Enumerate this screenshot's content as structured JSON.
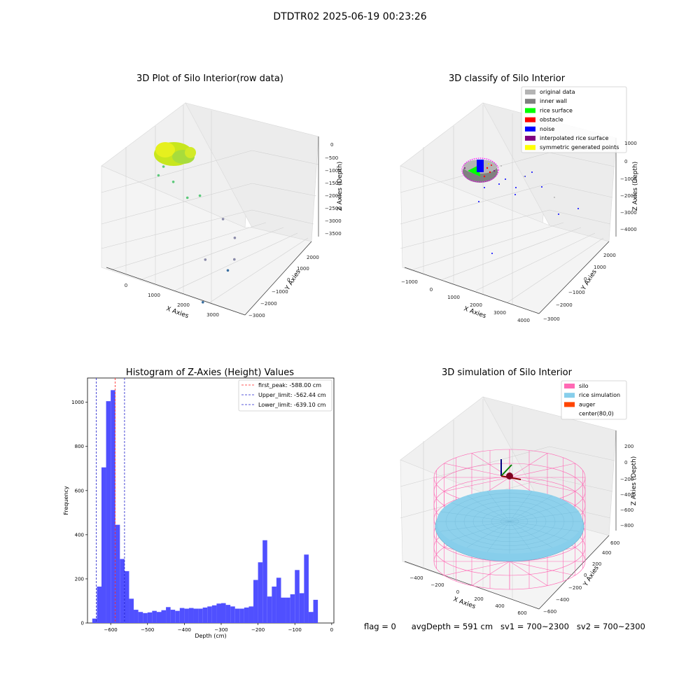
{
  "figure": {
    "suptitle": "DTDTR02 2025-06-19 00:23:26"
  },
  "status": {
    "flag": "flag = 0",
    "avg_depth": "avgDepth = 591 cm",
    "sv1": "sv1 = 700~2300",
    "sv2": "sv2 = 700~2300"
  },
  "colors": {
    "histogram_bar": "#5050ff",
    "first_peak_line": "#ff2020",
    "limit_line": "#2020cc",
    "silo_wire": "#ff69b4",
    "rice_surface": "#87ceeb",
    "auger": "#ff4500"
  },
  "chart_data": [
    {
      "type": "scatter3d",
      "title": "3D Plot of Silo Interior(row data)",
      "xlabel": "X Axies",
      "ylabel": "Y Axies",
      "zlabel": "Z Axies (Depth)",
      "x_ticks": [
        "0",
        "1000",
        "2000",
        "3000"
      ],
      "y_ticks": [
        "2000",
        "1000",
        "0",
        "−1000",
        "−2000",
        "−3000"
      ],
      "z_ticks": [
        "0",
        "−500",
        "−1000",
        "−1500",
        "−2000",
        "−2500",
        "−3000",
        "−3500"
      ],
      "points": [
        {
          "x": 350,
          "y": 150,
          "z": -600
        },
        {
          "x": 1000,
          "y": 1300,
          "z": -1000
        },
        {
          "x": 1200,
          "y": 1000,
          "z": -1300
        },
        {
          "x": 1500,
          "y": 600,
          "z": -1500
        },
        {
          "x": 2000,
          "y": 800,
          "z": -1400
        },
        {
          "x": 2600,
          "y": 400,
          "z": -1800
        },
        {
          "x": 1300,
          "y": -1300,
          "z": -2500
        },
        {
          "x": 2600,
          "y": -500,
          "z": -2700
        },
        {
          "x": 3200,
          "y": 900,
          "z": -2800
        },
        {
          "x": 2300,
          "y": -700,
          "z": -3100
        },
        {
          "x": 800,
          "y": -2300,
          "z": -3600
        }
      ]
    },
    {
      "type": "scatter3d",
      "title": "3D classify of Silo Interior",
      "xlabel": "X Axies",
      "ylabel": "Y Axies",
      "zlabel": "Z Axies (Depth)",
      "x_ticks": [
        "−1000",
        "0",
        "1000",
        "2000",
        "3000",
        "4000"
      ],
      "y_ticks": [
        "2000",
        "1000",
        "0",
        "−1000",
        "−2000",
        "−3000"
      ],
      "z_ticks": [
        "1000",
        "0",
        "−1000",
        "−2000",
        "−3000",
        "−4000"
      ],
      "legend": [
        {
          "label": "original data",
          "color": "#b4b4b4"
        },
        {
          "label": "inner wall",
          "color": "#808080"
        },
        {
          "label": "rice surface",
          "color": "#00ff00"
        },
        {
          "label": "obstacle",
          "color": "#ff0000"
        },
        {
          "label": "noise",
          "color": "#0000ff"
        },
        {
          "label": "interpolated rice surface",
          "color": "#800080"
        },
        {
          "label": "symmetric generated points",
          "color": "#ffff00"
        }
      ],
      "legend_position": "upper right"
    },
    {
      "type": "bar",
      "title": "Histogram of Z-Axies (Height) Values",
      "xlabel": "Depth (cm)",
      "ylabel": "Frequency",
      "xlim": [
        -663,
        6
      ],
      "ylim": [
        0,
        1110
      ],
      "x_ticks": [
        -600,
        -500,
        -400,
        -300,
        -200,
        -100,
        0
      ],
      "y_ticks": [
        0,
        200,
        400,
        600,
        800,
        1000
      ],
      "bin_start": -650,
      "bin_width": 12.5,
      "values": [
        20,
        165,
        705,
        1005,
        1055,
        445,
        290,
        235,
        110,
        60,
        50,
        45,
        48,
        55,
        50,
        58,
        72,
        60,
        55,
        68,
        65,
        68,
        65,
        65,
        70,
        75,
        80,
        88,
        90,
        82,
        75,
        65,
        65,
        70,
        75,
        195,
        275,
        375,
        120,
        165,
        205,
        115,
        115,
        130,
        240,
        135,
        310,
        50,
        105
      ],
      "reference_lines": [
        {
          "label": "first_peak: -588.00 cm",
          "x": -588.0,
          "style": "red-dashed"
        },
        {
          "label": "Upper_limit: -562.44 cm",
          "x": -562.44,
          "style": "blue-dashed"
        },
        {
          "label": "Lower_limit: -639.10 cm",
          "x": -639.1,
          "style": "blue-dashed"
        }
      ],
      "legend_position": "upper right"
    },
    {
      "type": "surface3d",
      "title": "3D simulation of Silo Interior",
      "xlabel": "X Axies",
      "ylabel": "Y Axies",
      "zlabel": "Z Axies (Depth)",
      "x_ticks": [
        "−400",
        "−200",
        "0",
        "200",
        "400",
        "600"
      ],
      "y_ticks": [
        "600",
        "400",
        "200",
        "0",
        "−200",
        "−400",
        "−600"
      ],
      "z_ticks": [
        "200",
        "0",
        "−200",
        "−400",
        "−600",
        "−800"
      ],
      "legend": [
        {
          "label": "silo",
          "color": "#ff69b4"
        },
        {
          "label": "rice simulation",
          "color": "#87ceeb"
        },
        {
          "label": "auger",
          "color": "#ff4500"
        },
        {
          "label": "center(80,0)",
          "color": "#ffffff"
        }
      ],
      "legend_position": "upper right"
    }
  ]
}
